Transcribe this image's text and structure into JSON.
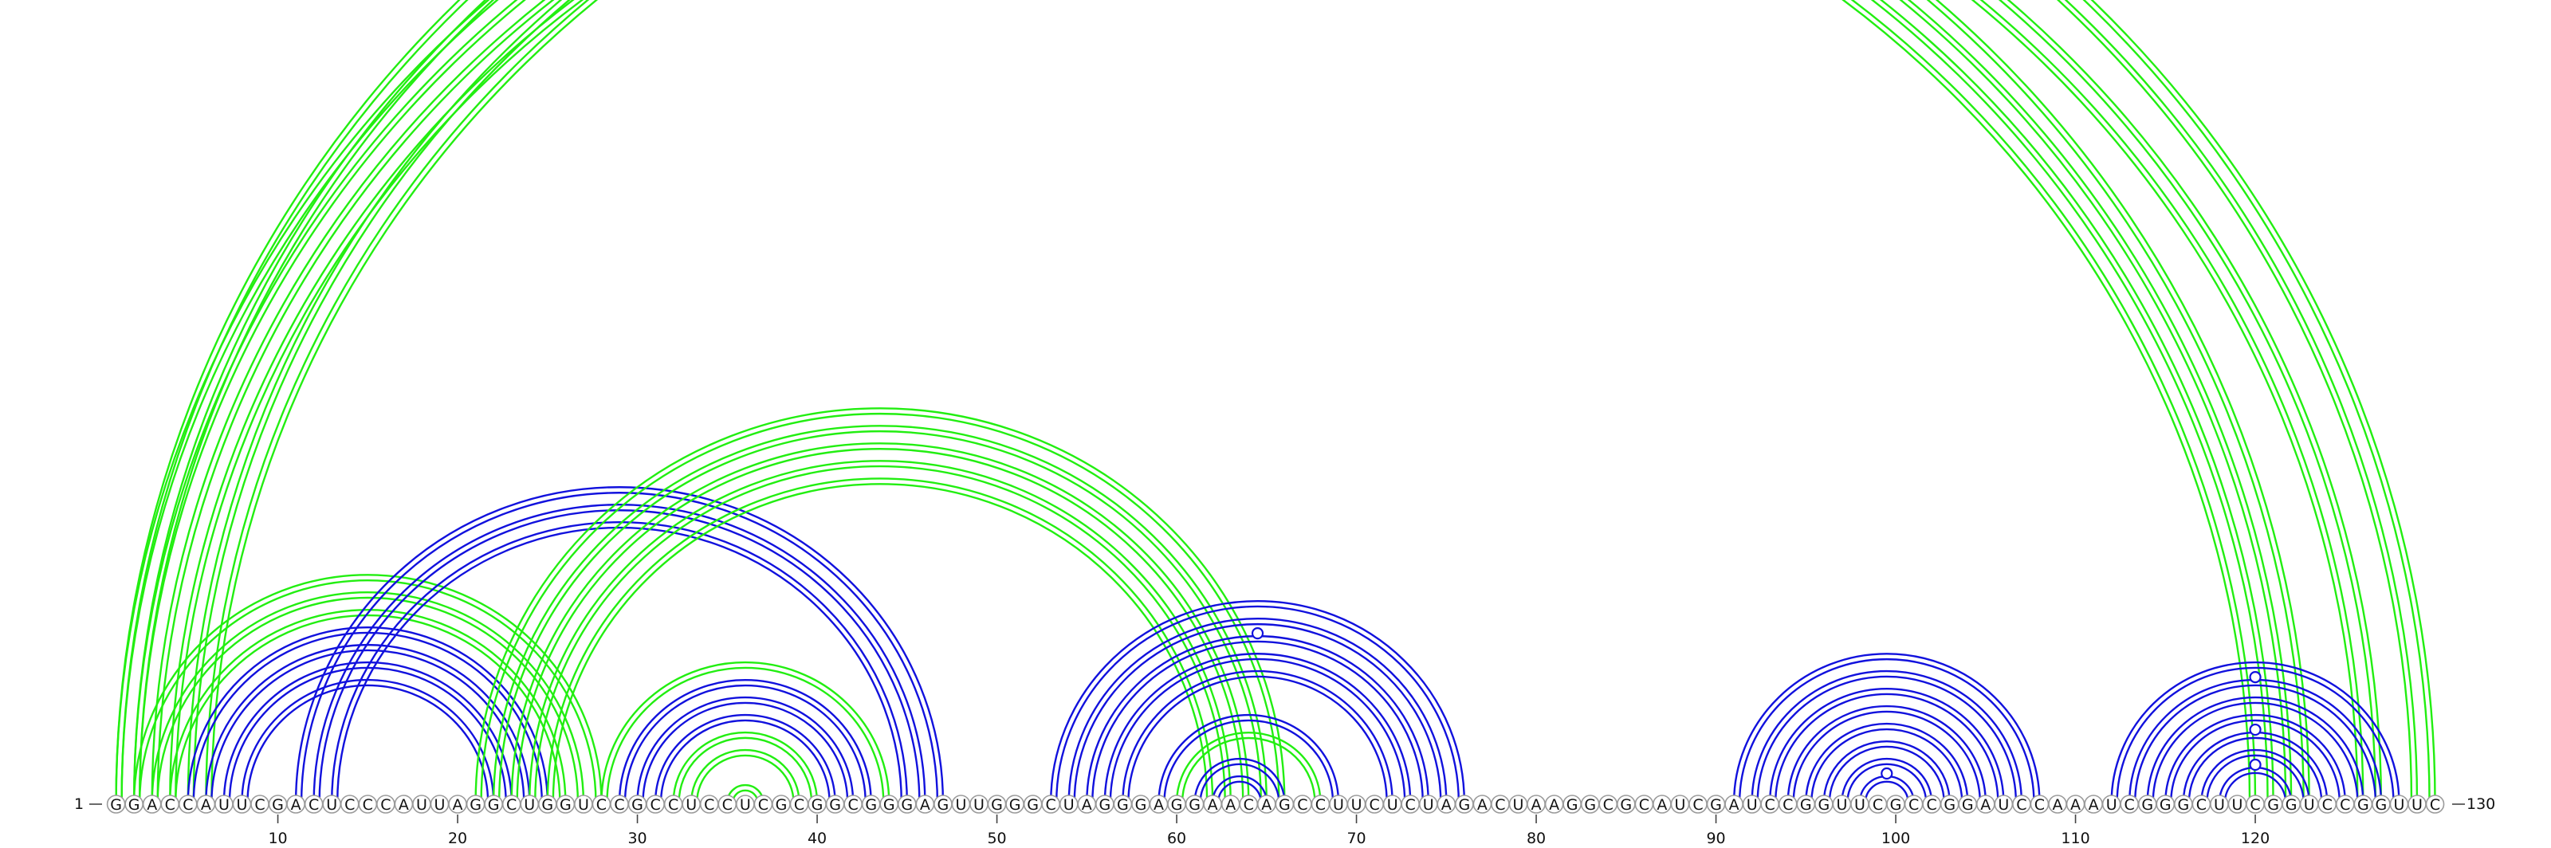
{
  "diagram": {
    "sequence": "GGACCAUUCGACUCCCAUUAGGCUGGUCCGCCUCCUCGCGGCGGGAGUUGGGCUAGGGAGGAACAGCCUUCUCUAGACUAAGGCGCAUCGAUCCGGUUCGCCGGAUCCAAAUCGGGCUUCGGUCCGGUUC",
    "start_label": "1",
    "end_label": "130",
    "tick_positions": [
      10,
      20,
      30,
      40,
      50,
      60,
      70,
      80,
      90,
      100,
      110,
      120
    ],
    "colors": {
      "green": "#22ee11",
      "blue": "#1111dd",
      "circle_stroke": "#9a9a9a",
      "text": "#111111"
    },
    "arcs": [
      {
        "i": 1,
        "j": 123,
        "color": "green"
      },
      {
        "i": 2,
        "j": 122,
        "color": "green"
      },
      {
        "i": 3,
        "j": 121,
        "color": "green"
      },
      {
        "i": 4,
        "j": 120,
        "color": "green"
      },
      {
        "i": 5,
        "j": 127,
        "color": "green"
      },
      {
        "i": 6,
        "j": 126,
        "color": "green"
      },
      {
        "i": 1,
        "j": 130,
        "color": "green",
        "marker": true
      },
      {
        "i": 2,
        "j": 129,
        "color": "green"
      },
      {
        "i": 2,
        "j": 28,
        "color": "green"
      },
      {
        "i": 3,
        "j": 27,
        "color": "green"
      },
      {
        "i": 4,
        "j": 26,
        "color": "green"
      },
      {
        "i": 5,
        "j": 25,
        "color": "blue"
      },
      {
        "i": 6,
        "j": 24,
        "color": "blue"
      },
      {
        "i": 7,
        "j": 23,
        "color": "blue"
      },
      {
        "i": 8,
        "j": 22,
        "color": "blue"
      },
      {
        "i": 11,
        "j": 47,
        "color": "blue"
      },
      {
        "i": 12,
        "j": 46,
        "color": "blue"
      },
      {
        "i": 13,
        "j": 45,
        "color": "blue"
      },
      {
        "i": 21,
        "j": 66,
        "color": "green"
      },
      {
        "i": 22,
        "j": 65,
        "color": "green"
      },
      {
        "i": 23,
        "j": 64,
        "color": "green"
      },
      {
        "i": 24,
        "j": 63,
        "color": "green"
      },
      {
        "i": 25,
        "j": 62,
        "color": "green"
      },
      {
        "i": 28,
        "j": 44,
        "color": "green"
      },
      {
        "i": 29,
        "j": 43,
        "color": "blue"
      },
      {
        "i": 30,
        "j": 42,
        "color": "blue"
      },
      {
        "i": 31,
        "j": 41,
        "color": "blue"
      },
      {
        "i": 32,
        "j": 40,
        "color": "green"
      },
      {
        "i": 33,
        "j": 39,
        "color": "green"
      },
      {
        "i": 35,
        "j": 37,
        "color": "green"
      },
      {
        "i": 53,
        "j": 76,
        "color": "blue"
      },
      {
        "i": 54,
        "j": 75,
        "color": "blue"
      },
      {
        "i": 55,
        "j": 74,
        "color": "blue",
        "marker": true
      },
      {
        "i": 56,
        "j": 73,
        "color": "blue"
      },
      {
        "i": 57,
        "j": 72,
        "color": "blue"
      },
      {
        "i": 59,
        "j": 69,
        "color": "blue"
      },
      {
        "i": 60,
        "j": 68,
        "color": "green"
      },
      {
        "i": 61,
        "j": 66,
        "color": "blue"
      },
      {
        "i": 62,
        "j": 65,
        "color": "blue"
      },
      {
        "i": 91,
        "j": 108,
        "color": "blue"
      },
      {
        "i": 92,
        "j": 107,
        "color": "blue"
      },
      {
        "i": 93,
        "j": 106,
        "color": "blue"
      },
      {
        "i": 94,
        "j": 105,
        "color": "blue"
      },
      {
        "i": 95,
        "j": 104,
        "color": "blue"
      },
      {
        "i": 96,
        "j": 103,
        "color": "blue"
      },
      {
        "i": 97,
        "j": 102,
        "color": "blue"
      },
      {
        "i": 98,
        "j": 101,
        "color": "blue",
        "marker": true
      },
      {
        "i": 112,
        "j": 128,
        "color": "blue"
      },
      {
        "i": 113,
        "j": 127,
        "color": "blue",
        "marker": true
      },
      {
        "i": 114,
        "j": 126,
        "color": "blue"
      },
      {
        "i": 115,
        "j": 125,
        "color": "blue"
      },
      {
        "i": 116,
        "j": 124,
        "color": "blue",
        "marker": true
      },
      {
        "i": 117,
        "j": 123,
        "color": "blue"
      },
      {
        "i": 118,
        "j": 122,
        "color": "blue",
        "marker": true
      }
    ]
  }
}
